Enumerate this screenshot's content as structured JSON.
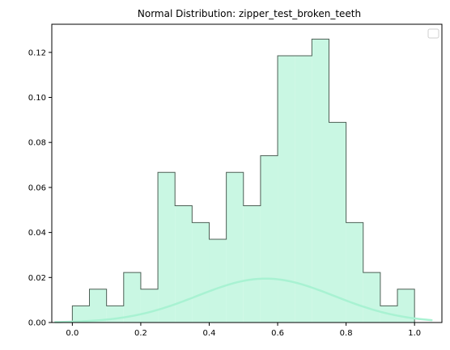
{
  "chart_data": {
    "type": "histogram",
    "title": "Normal Distribution: zipper_test_broken_teeth",
    "xlabel": "",
    "ylabel": "",
    "xlim": [
      -0.06,
      1.08
    ],
    "ylim": [
      0,
      0.1325
    ],
    "grid": false,
    "legend": {
      "placement": "top-right",
      "entries": []
    },
    "x_ticks": [
      0.0,
      0.2,
      0.4,
      0.6,
      0.8,
      1.0
    ],
    "x_tick_labels": [
      "0.0",
      "0.2",
      "0.4",
      "0.6",
      "0.8",
      "1.0"
    ],
    "y_ticks": [
      0.0,
      0.02,
      0.04,
      0.06,
      0.08,
      0.1,
      0.12
    ],
    "y_tick_labels": [
      "0.00",
      "0.02",
      "0.04",
      "0.06",
      "0.08",
      "0.10",
      "0.12"
    ],
    "bins": {
      "edges": [
        0.0,
        0.05,
        0.1,
        0.15,
        0.2,
        0.25,
        0.3,
        0.35,
        0.4,
        0.45,
        0.5,
        0.55,
        0.6,
        0.65,
        0.7,
        0.75,
        0.8,
        0.85,
        0.9,
        0.95,
        1.0
      ],
      "values": [
        0.0074,
        0.0148,
        0.0074,
        0.0222,
        0.0148,
        0.0667,
        0.0519,
        0.0444,
        0.037,
        0.0667,
        0.0519,
        0.0741,
        0.1185,
        0.1185,
        0.1259,
        0.0889,
        0.0444,
        0.0222,
        0.0074,
        0.0148
      ]
    },
    "density_curve": {
      "mean": 0.565,
      "peak": 0.0195,
      "std": 0.2,
      "x_range": [
        -0.05,
        1.05
      ]
    },
    "colors": {
      "hist_fill": "#c9f7e3",
      "hist_edge": "#4d5f55",
      "curve": "#a8f2d2",
      "axes": "#000000"
    }
  }
}
